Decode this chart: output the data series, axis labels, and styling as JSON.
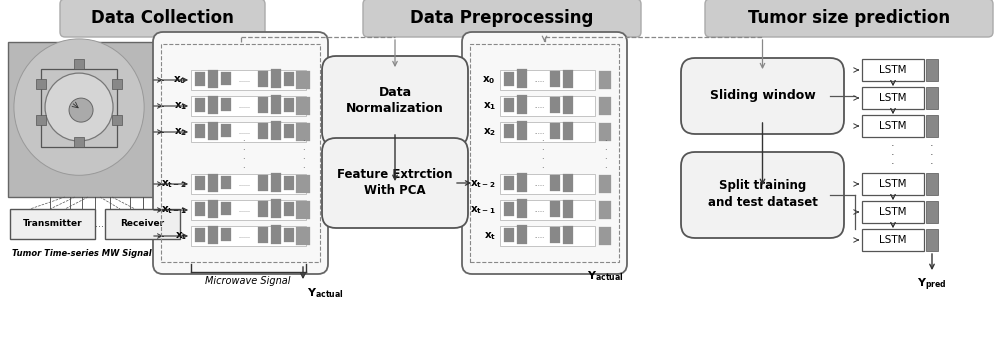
{
  "bg_color": "#ffffff",
  "section_titles": [
    "Data Collection",
    "Data Preprocessing",
    "Tumor size prediction"
  ],
  "row_labels_math": [
    "$\\mathbf{x_0}$",
    "$\\mathbf{x_1}$",
    "$\\mathbf{x_2}$",
    "$\\mathbf{x_{t-2}}$",
    "$\\mathbf{x_{t-1}}$",
    "$\\mathbf{x_t}$"
  ],
  "process_boxes": [
    "Data\nNormalization",
    "Feature Extrction\nWith PCA"
  ],
  "prediction_boxes": [
    "Sliding window",
    "Split training\nand test dataset"
  ],
  "lstm_count": 6,
  "bottom_label_actual": "$Y_{actual}$",
  "bottom_label_pred": "$Y_{pred}$",
  "microwave_signal_label": "Microwave Signal",
  "transmitter_label": "Transmitter",
  "receiver_label": "Receiver",
  "tumor_label": "Tumor Time-series MW Signal",
  "section_gray": "#cccccc",
  "box_fill": "#f2f2f2",
  "bar_gray": "#888888",
  "bar_light": "#aaaaaa",
  "dark_gray": "#555555"
}
